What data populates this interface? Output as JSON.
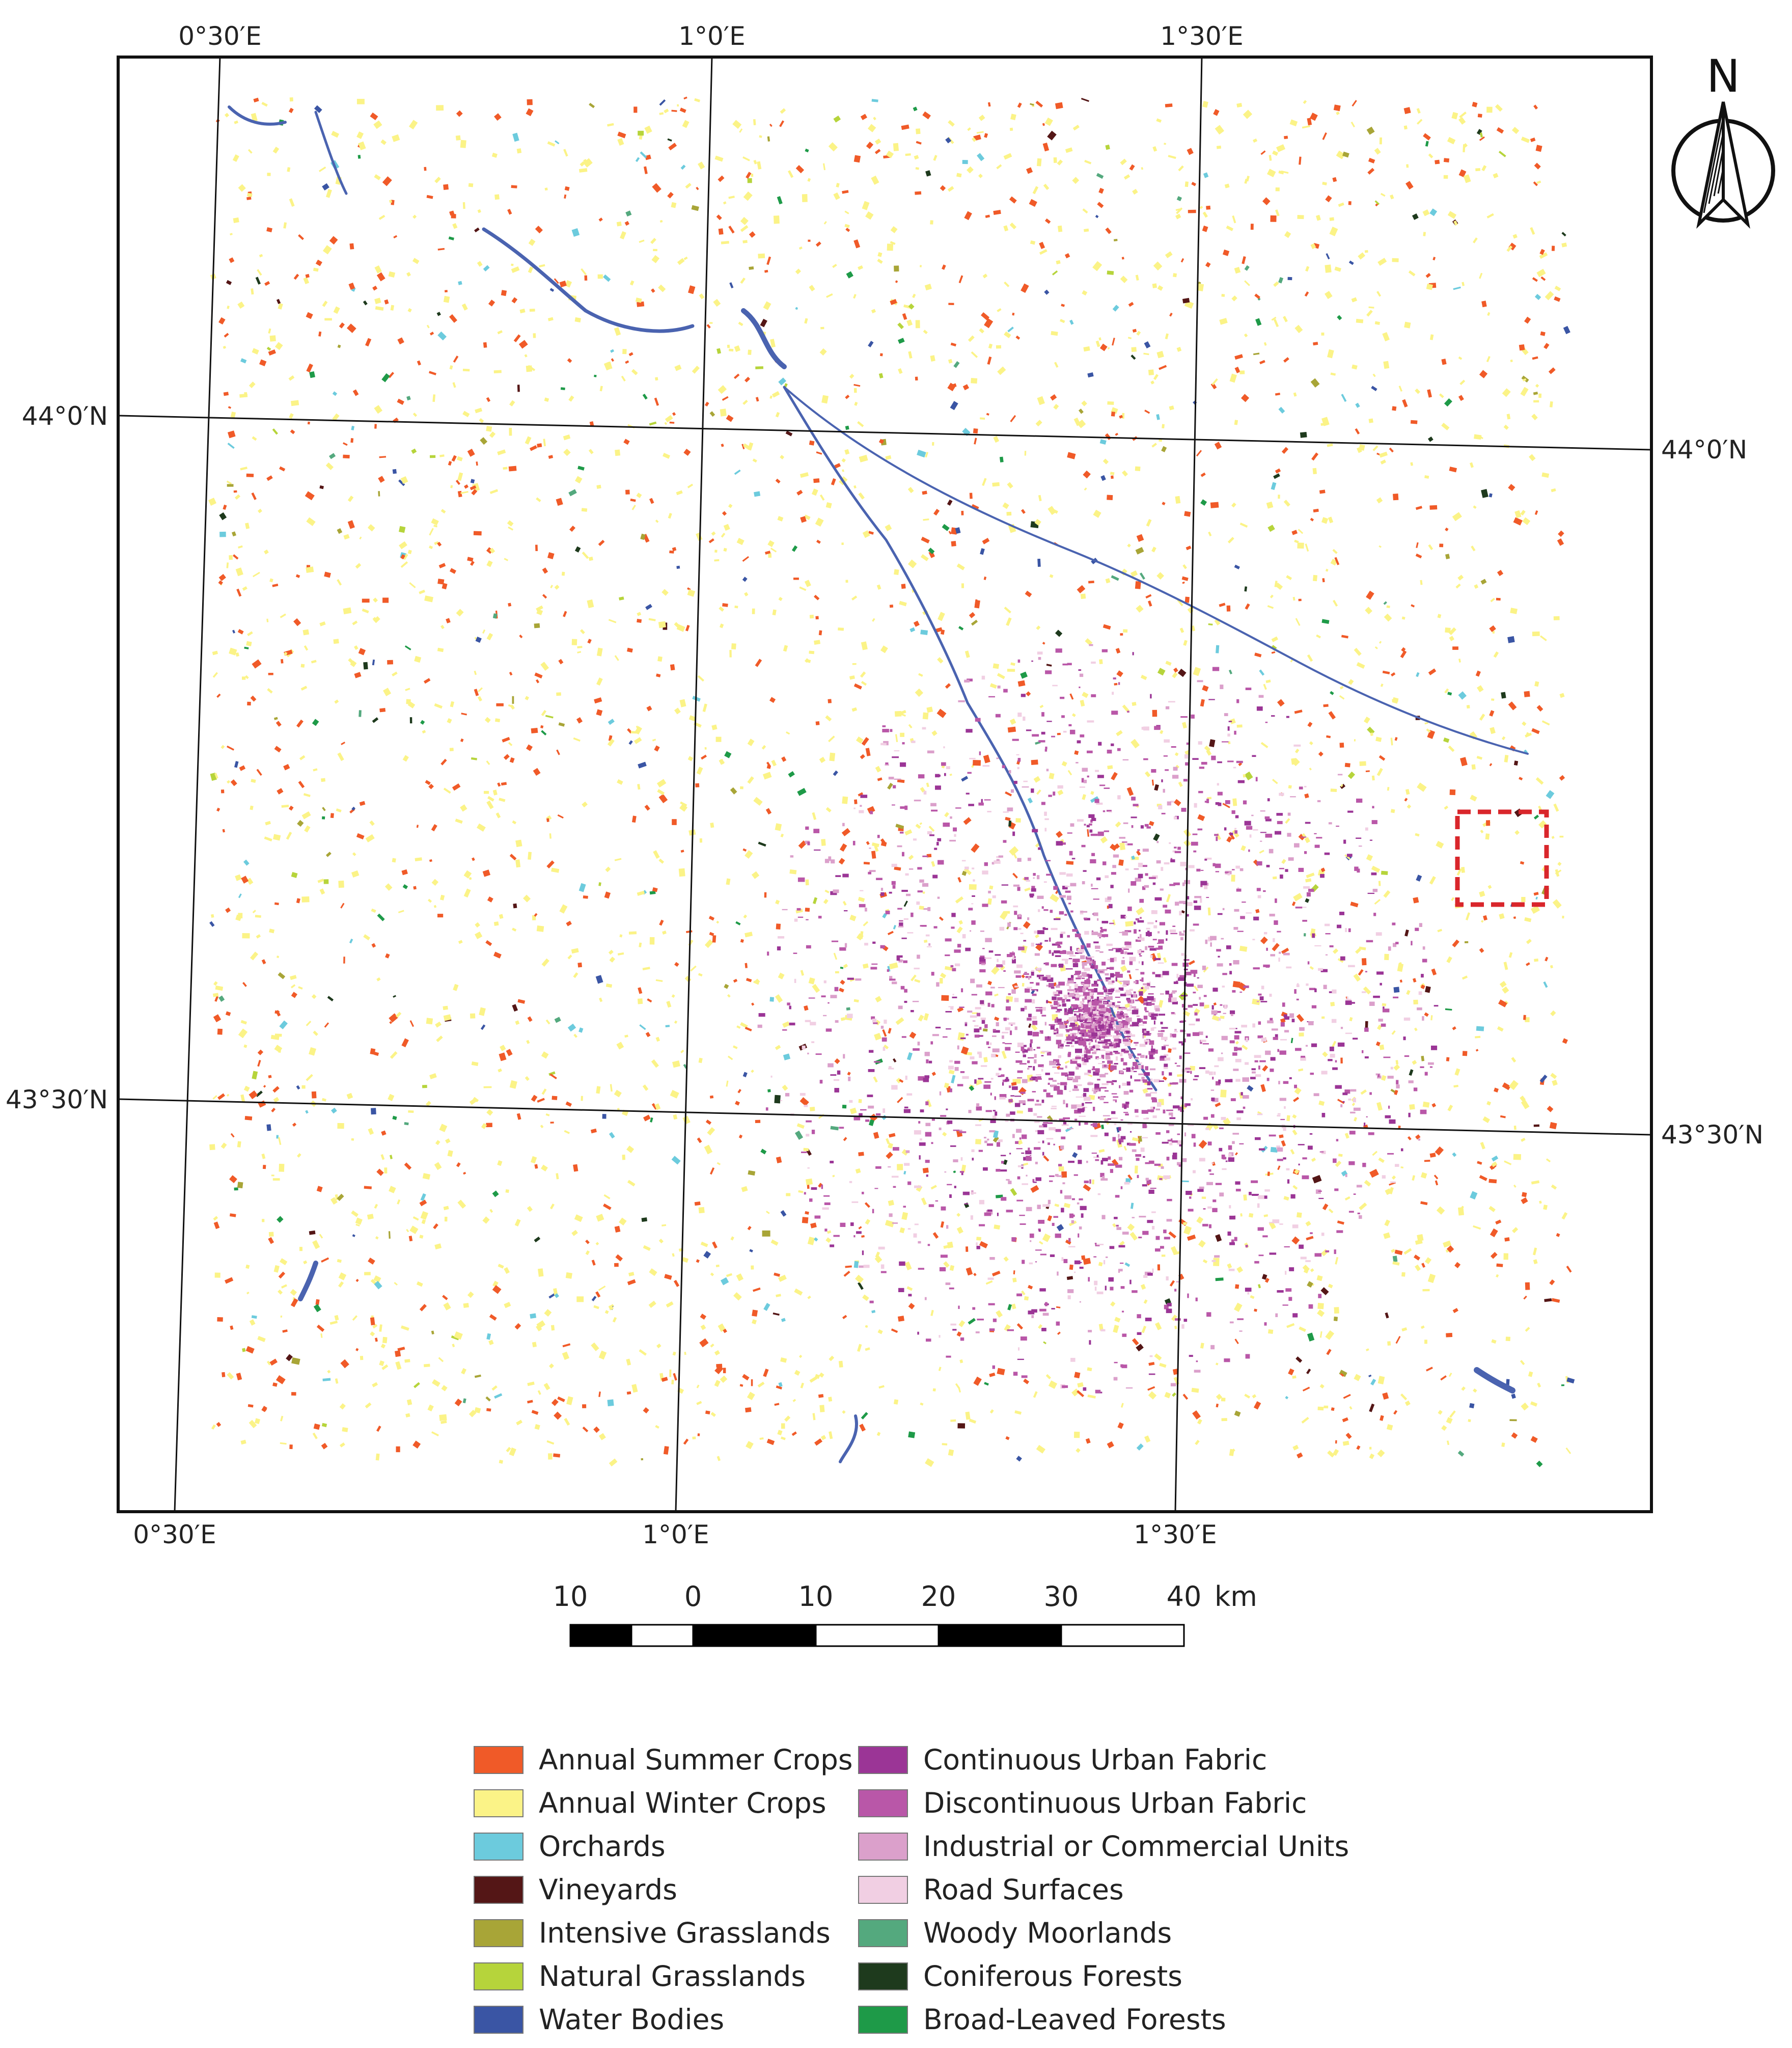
{
  "map": {
    "graticule": {
      "longitude_labels_top": [
        "0°30′E",
        "1°0′E",
        "1°30′E"
      ],
      "longitude_labels_bottom": [
        "0°30′E",
        "1°0′E",
        "1°30′E"
      ],
      "latitude_labels_left": [
        "44°0′N",
        "43°30′N"
      ],
      "latitude_labels_right": [
        "44°0′N",
        "43°30′N"
      ]
    },
    "north_arrow": {
      "label": "N",
      "icon": "north-arrow-icon"
    },
    "scale_bar": {
      "ticks": [
        "10",
        "0",
        "10",
        "20",
        "30",
        "40"
      ],
      "unit": "km"
    },
    "highlight_box": {
      "color": "#d9262b",
      "style": "dashed"
    }
  },
  "legend": {
    "items": [
      {
        "label": "Annual Summer Crops",
        "color": "#f05a28"
      },
      {
        "label": "Annual Winter Crops",
        "color": "#fbf387"
      },
      {
        "label": "Orchards",
        "color": "#6ccbdd"
      },
      {
        "label": "Vineyards",
        "color": "#541616"
      },
      {
        "label": "Intensive Grasslands",
        "color": "#a8a537"
      },
      {
        "label": "Natural Grasslands",
        "color": "#b6d43b"
      },
      {
        "label": "Water Bodies",
        "color": "#3a55a4"
      },
      {
        "label": "Continuous Urban Fabric",
        "color": "#9b3596"
      },
      {
        "label": "Discontinuous Urban Fabric",
        "color": "#b957a8"
      },
      {
        "label": "Industrial or Commercial Units",
        "color": "#dba0cb"
      },
      {
        "label": "Road Surfaces",
        "color": "#f1cfe3"
      },
      {
        "label": "Woody Moorlands",
        "color": "#54a97e"
      },
      {
        "label": "Coniferous Forests",
        "color": "#1e3a1d"
      },
      {
        "label": "Broad-Leaved Forests",
        "color": "#1e9a48"
      }
    ]
  }
}
